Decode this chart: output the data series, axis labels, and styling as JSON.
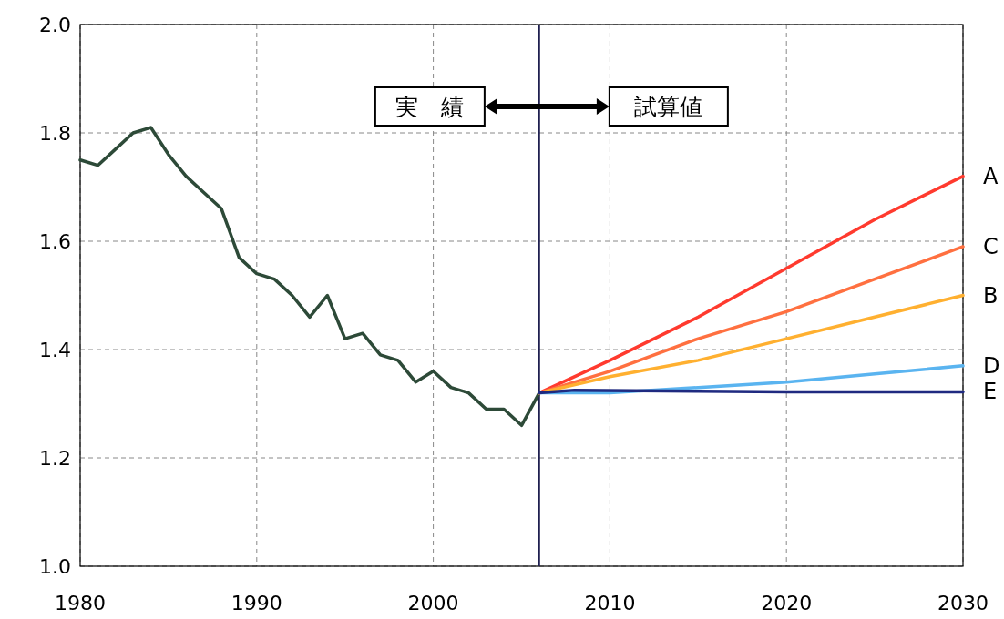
{
  "chart_data": {
    "type": "line",
    "xlim": [
      1980,
      2030
    ],
    "ylim": [
      1.0,
      2.0
    ],
    "xticks": [
      1980,
      1990,
      2000,
      2010,
      2020,
      2030
    ],
    "yticks": [
      {
        "value": 1.0,
        "label": "1.0"
      },
      {
        "value": 1.2,
        "label": "1.2"
      },
      {
        "value": 1.4,
        "label": "1.4"
      },
      {
        "value": 1.6,
        "label": "1.6"
      },
      {
        "value": 1.8,
        "label": "1.8"
      },
      {
        "value": 2.0,
        "label": "2.0"
      }
    ],
    "grid": true,
    "ref_lines": [
      {
        "axis": "x",
        "value": 2006,
        "color": "#1f2050"
      }
    ],
    "annotations": [
      "実　績",
      "試算値"
    ],
    "series": [
      {
        "color": "#2d4a38",
        "x": [
          1980,
          1981,
          1982,
          1983,
          1984,
          1985,
          1986,
          1987,
          1988,
          1989,
          1990,
          1991,
          1992,
          1993,
          1994,
          1995,
          1996,
          1997,
          1998,
          1999,
          2000,
          2001,
          2002,
          2003,
          2004,
          2005,
          2006
        ],
        "values": [
          1.75,
          1.74,
          1.77,
          1.8,
          1.81,
          1.76,
          1.72,
          1.69,
          1.66,
          1.57,
          1.54,
          1.53,
          1.5,
          1.46,
          1.5,
          1.42,
          1.43,
          1.39,
          1.38,
          1.34,
          1.36,
          1.33,
          1.32,
          1.29,
          1.29,
          1.26,
          1.32
        ]
      },
      {
        "name": "A",
        "color": "#ff3a2e",
        "x": [
          2006,
          2010,
          2015,
          2020,
          2025,
          2030
        ],
        "values": [
          1.32,
          1.38,
          1.46,
          1.55,
          1.64,
          1.72
        ]
      },
      {
        "name": "C",
        "color": "#ff7040",
        "x": [
          2006,
          2010,
          2015,
          2020,
          2025,
          2030
        ],
        "values": [
          1.32,
          1.36,
          1.42,
          1.47,
          1.53,
          1.59
        ]
      },
      {
        "name": "B",
        "color": "#ffb030",
        "x": [
          2006,
          2010,
          2015,
          2020,
          2025,
          2030
        ],
        "values": [
          1.32,
          1.35,
          1.38,
          1.42,
          1.46,
          1.5
        ]
      },
      {
        "name": "D",
        "color": "#5ab4f0",
        "x": [
          2006,
          2010,
          2015,
          2020,
          2025,
          2030
        ],
        "values": [
          1.32,
          1.32,
          1.33,
          1.34,
          1.355,
          1.37
        ]
      },
      {
        "name": "E",
        "color": "#1f2a80",
        "x": [
          2006,
          2008,
          2015,
          2020,
          2025,
          2030
        ],
        "values": [
          1.32,
          1.325,
          1.323,
          1.322,
          1.322,
          1.322
        ]
      }
    ]
  }
}
